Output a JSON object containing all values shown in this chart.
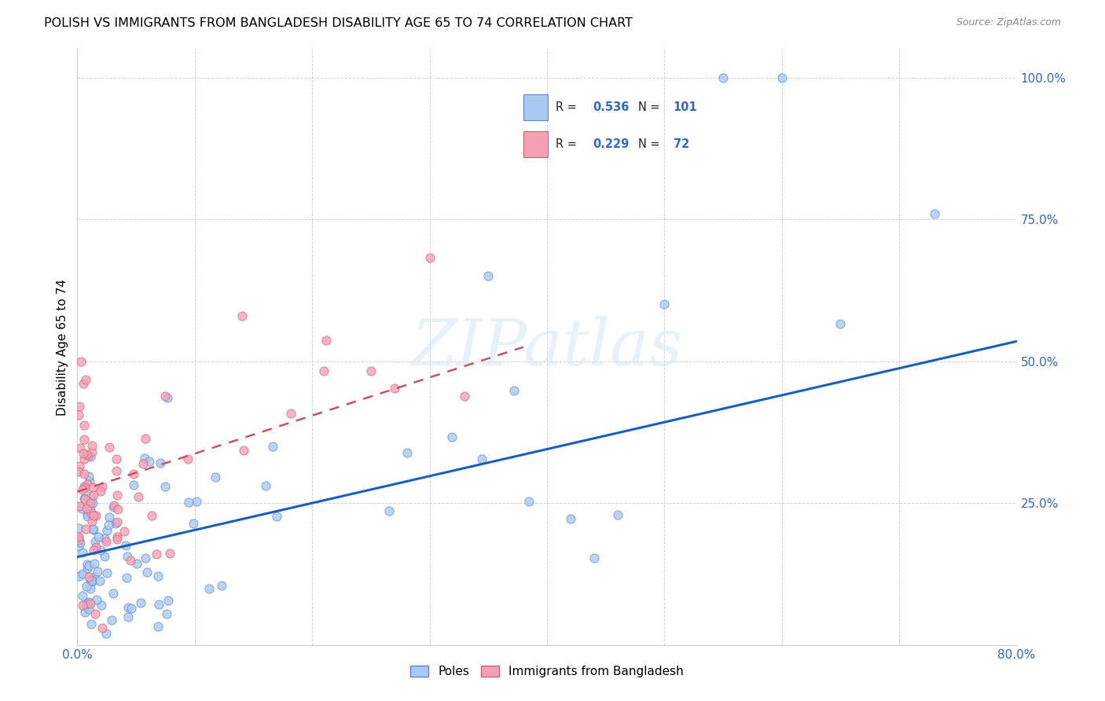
{
  "title": "POLISH VS IMMIGRANTS FROM BANGLADESH DISABILITY AGE 65 TO 74 CORRELATION CHART",
  "source": "Source: ZipAtlas.com",
  "ylabel": "Disability Age 65 to 74",
  "legend_labels": [
    "Poles",
    "Immigrants from Bangladesh"
  ],
  "r_poles": 0.536,
  "n_poles": 101,
  "r_bangladesh": 0.229,
  "n_bangladesh": 72,
  "color_poles": "#aac8f0",
  "color_bangladesh": "#f4a0b4",
  "edge_poles": "#5588cc",
  "edge_bangladesh": "#d06070",
  "line_color_poles": "#1a5fbb",
  "line_color_bangladesh": "#cc5060",
  "xlim": [
    0.0,
    0.8
  ],
  "ylim": [
    0.0,
    1.05
  ],
  "watermark": "ZIPatlas",
  "poles_line_x0": 0.0,
  "poles_line_y0": 0.155,
  "poles_line_x1": 0.8,
  "poles_line_y1": 0.535,
  "bangladesh_line_x0": 0.0,
  "bangladesh_line_y0": 0.27,
  "bangladesh_line_x1": 0.38,
  "bangladesh_line_y1": 0.525
}
